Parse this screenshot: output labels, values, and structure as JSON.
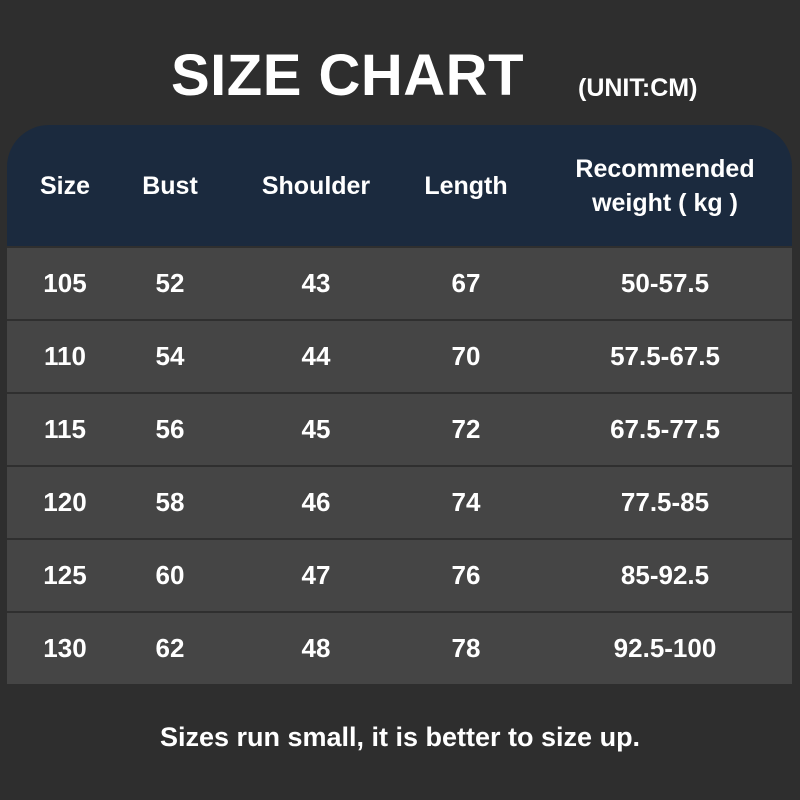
{
  "title": "SIZE CHART",
  "unit": "(UNIT:CM)",
  "table": {
    "headers": [
      "Size",
      "Bust",
      "Shoulder",
      "Length",
      "Recommended weight ( kg )"
    ],
    "rows": [
      [
        "105",
        "52",
        "43",
        "67",
        "50-57.5"
      ],
      [
        "110",
        "54",
        "44",
        "70",
        "57.5-67.5"
      ],
      [
        "115",
        "56",
        "45",
        "72",
        "67.5-77.5"
      ],
      [
        "120",
        "58",
        "46",
        "74",
        "77.5-85"
      ],
      [
        "125",
        "60",
        "47",
        "76",
        "85-92.5"
      ],
      [
        "130",
        "62",
        "48",
        "78",
        "92.5-100"
      ]
    ]
  },
  "footer": "Sizes run small, it is better to size up.",
  "colors": {
    "background": "#2e2e2e",
    "header": "#1b2a3e",
    "row": "#454545"
  }
}
